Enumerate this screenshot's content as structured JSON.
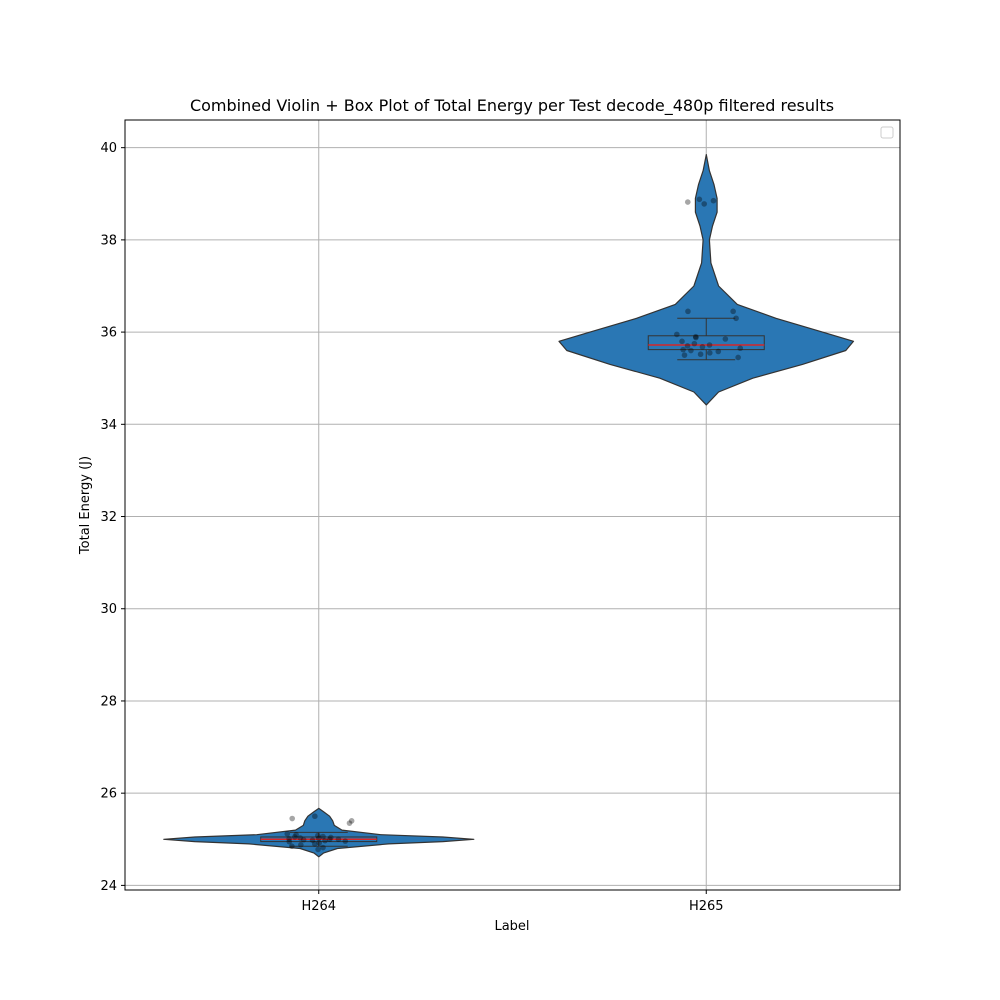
{
  "chart_data": {
    "type": "violin",
    "title": "Combined Violin + Box Plot of Total Energy per Test decode_480p filtered results",
    "xlabel": "Label",
    "ylabel": "Total Energy (J)",
    "ylim": [
      23.9,
      40.6
    ],
    "yticks": [
      24,
      26,
      28,
      30,
      32,
      34,
      36,
      38,
      40
    ],
    "grid": true,
    "legend": "top-right",
    "categories": [
      "H264",
      "H265"
    ],
    "violin_color": "#2a77b4",
    "median_color": "#d62728",
    "series": [
      {
        "category": "H264",
        "box": {
          "q1": 24.95,
          "median": 25.0,
          "q3": 25.05,
          "whisker_low": 24.85,
          "whisker_high": 25.15
        },
        "density": [
          [
            24.62,
            0.0
          ],
          [
            24.7,
            0.03
          ],
          [
            24.8,
            0.12
          ],
          [
            24.9,
            0.45
          ],
          [
            24.95,
            0.8
          ],
          [
            25.0,
            1.0
          ],
          [
            25.05,
            0.8
          ],
          [
            25.1,
            0.4
          ],
          [
            25.2,
            0.15
          ],
          [
            25.3,
            0.1
          ],
          [
            25.4,
            0.09
          ],
          [
            25.5,
            0.07
          ],
          [
            25.6,
            0.03
          ],
          [
            25.67,
            0.0
          ]
        ],
        "points": [
          24.78,
          24.82,
          24.85,
          24.88,
          24.9,
          24.92,
          24.95,
          24.96,
          24.97,
          24.98,
          24.99,
          25.0,
          25.0,
          25.01,
          25.02,
          25.03,
          25.04,
          25.05,
          25.06,
          25.08,
          25.1,
          25.12,
          25.35,
          25.4,
          25.45,
          25.5
        ]
      },
      {
        "category": "H265",
        "box": {
          "q1": 35.62,
          "median": 35.72,
          "q3": 35.92,
          "whisker_low": 35.4,
          "whisker_high": 36.3
        },
        "density": [
          [
            34.42,
            0.0
          ],
          [
            34.7,
            0.08
          ],
          [
            35.0,
            0.3
          ],
          [
            35.3,
            0.62
          ],
          [
            35.6,
            0.9
          ],
          [
            35.8,
            0.95
          ],
          [
            36.0,
            0.75
          ],
          [
            36.3,
            0.45
          ],
          [
            36.6,
            0.2
          ],
          [
            37.0,
            0.08
          ],
          [
            37.5,
            0.03
          ],
          [
            38.0,
            0.02
          ],
          [
            38.3,
            0.04
          ],
          [
            38.6,
            0.07
          ],
          [
            38.9,
            0.07
          ],
          [
            39.2,
            0.05
          ],
          [
            39.5,
            0.02
          ],
          [
            39.85,
            0.0
          ]
        ],
        "points": [
          35.45,
          35.5,
          35.52,
          35.55,
          35.58,
          35.6,
          35.62,
          35.65,
          35.68,
          35.7,
          35.72,
          35.75,
          35.8,
          35.85,
          35.88,
          35.9,
          35.95,
          36.3,
          36.45,
          36.45,
          38.78,
          38.82,
          38.85,
          38.88
        ]
      }
    ]
  }
}
